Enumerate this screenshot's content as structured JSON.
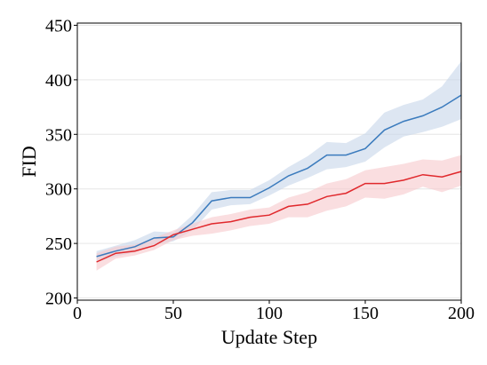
{
  "chart_data": {
    "type": "line",
    "title": "",
    "xlabel": "Update Step",
    "ylabel": "FID",
    "xlim": [
      0,
      200
    ],
    "ylim": [
      198,
      452
    ],
    "xticks": [
      0,
      50,
      100,
      150,
      200
    ],
    "yticks": [
      200,
      250,
      300,
      350,
      400,
      450
    ],
    "grid": "horizontal",
    "legend": "none",
    "x": [
      10,
      20,
      30,
      40,
      50,
      60,
      70,
      80,
      90,
      100,
      110,
      120,
      130,
      140,
      150,
      160,
      170,
      180,
      190,
      200
    ],
    "series": [
      {
        "color": "#3b7bbd",
        "band_color": "#c6d6ea",
        "values": [
          238,
          243,
          247,
          255,
          256,
          269,
          289,
          292,
          292,
          301,
          312,
          319,
          331,
          331,
          337,
          354,
          362,
          367,
          375,
          386
        ],
        "lower": [
          233,
          238,
          242,
          249,
          252,
          262,
          281,
          285,
          286,
          294,
          303,
          310,
          318,
          320,
          325,
          338,
          348,
          352,
          357,
          364
        ],
        "upper": [
          243,
          248,
          253,
          261,
          260,
          276,
          297,
          299,
          299,
          308,
          320,
          330,
          343,
          342,
          351,
          370,
          377,
          382,
          394,
          417
        ]
      },
      {
        "color": "#e0282c",
        "band_color": "#f6c8cb",
        "values": [
          233,
          241,
          243,
          248,
          258,
          263,
          268,
          270,
          274,
          276,
          284,
          286,
          293,
          296,
          305,
          305,
          308,
          313,
          311,
          316
        ],
        "lower": [
          225,
          236,
          239,
          244,
          253,
          257,
          259,
          262,
          266,
          268,
          274,
          274,
          280,
          284,
          292,
          291,
          295,
          302,
          297,
          303
        ],
        "upper": [
          241,
          247,
          249,
          255,
          262,
          268,
          274,
          277,
          281,
          283,
          292,
          297,
          305,
          309,
          317,
          320,
          323,
          327,
          326,
          331
        ]
      }
    ]
  }
}
